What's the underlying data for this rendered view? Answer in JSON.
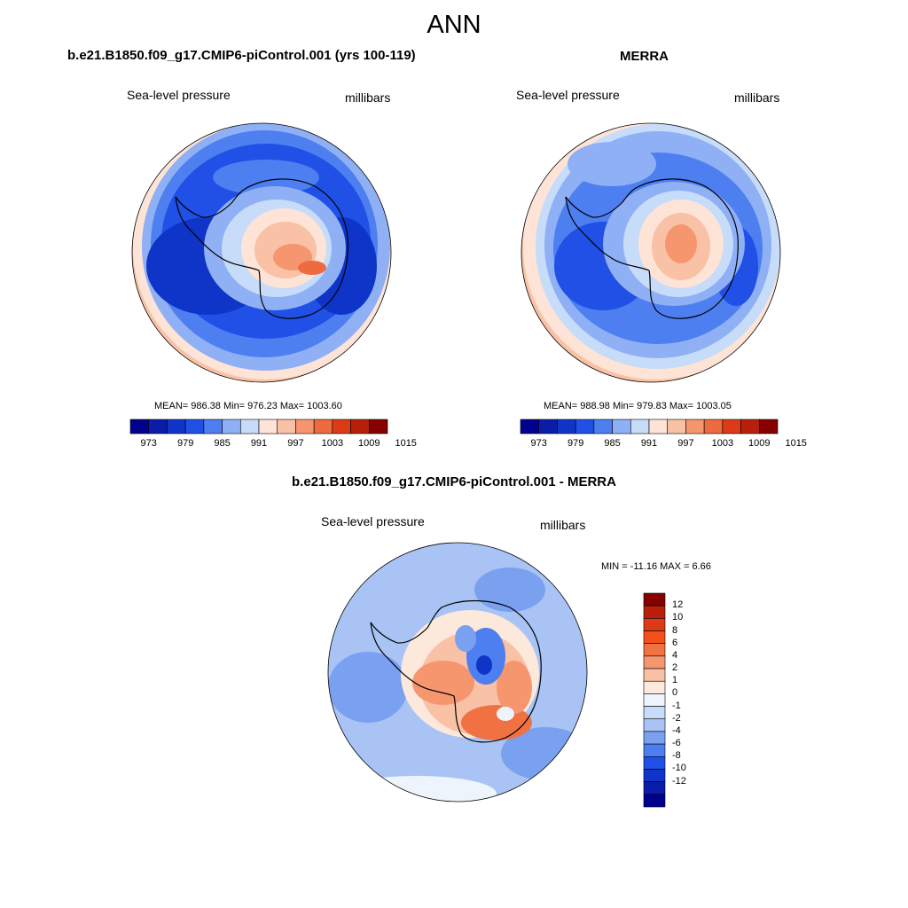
{
  "figure": {
    "title": "ANN"
  },
  "panels": {
    "model": {
      "title": "b.e21.B1850.f09_g17.CMIP6-piControl.001 (yrs 100-119)",
      "variable": "Sea-level pressure",
      "units": "millibars",
      "stats": "MEAN= 986.38  Min= 976.23  Max= 1003.60"
    },
    "obs": {
      "title": "MERRA",
      "variable": "Sea-level pressure",
      "units": "millibars",
      "stats": "MEAN= 988.98  Min= 979.83  Max= 1003.05"
    },
    "diff": {
      "title": "b.e21.B1850.f09_g17.CMIP6-piControl.001 - MERRA",
      "variable": "Sea-level pressure",
      "units": "millibars",
      "stats": "MIN = -11.16 MAX =   6.66"
    }
  },
  "colorbars": {
    "abs_ticks": [
      "973",
      "979",
      "985",
      "991",
      "997",
      "1003",
      "1009",
      "1015"
    ],
    "abs_colors": [
      "#00008f",
      "#0a1ca8",
      "#0f35c8",
      "#2050e6",
      "#4d7ff0",
      "#8fb0f5",
      "#c7dcf8",
      "#fde4d6",
      "#f9c1a5",
      "#f5966f",
      "#ee6a3f",
      "#dd3a17",
      "#b8200c",
      "#860000"
    ],
    "diff_ticks": [
      "12",
      "10",
      "8",
      "6",
      "4",
      "2",
      "1",
      "0",
      "-1",
      "-2",
      "-4",
      "-6",
      "-8",
      "-10",
      "-12"
    ],
    "diff_colors": [
      "#860000",
      "#b8200c",
      "#dd3a17",
      "#f5501c",
      "#f07243",
      "#f5966f",
      "#f9c1a5",
      "#fde8dc",
      "#eef4fb",
      "#c7dcf8",
      "#a9c4f4",
      "#7aa0f0",
      "#4d7ff0",
      "#2050e6",
      "#0f35c8",
      "#0a1ca8",
      "#00008f"
    ]
  }
}
